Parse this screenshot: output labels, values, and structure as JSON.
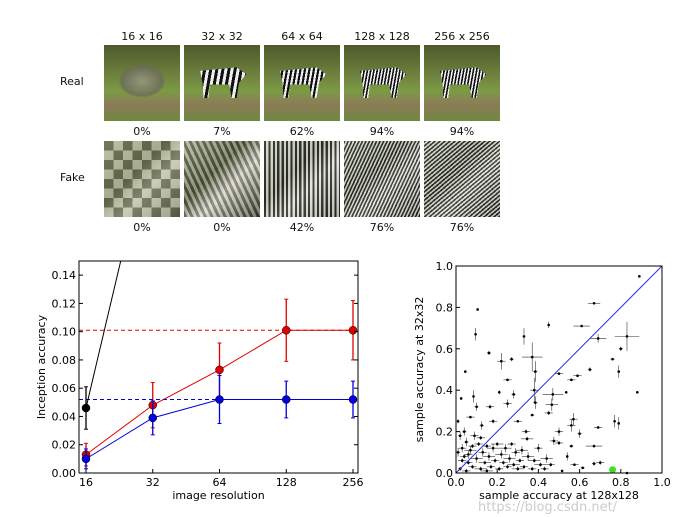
{
  "grid": {
    "resolutions": [
      "16 x 16",
      "32 x 32",
      "64 x 64",
      "128 x 128",
      "256 x 256"
    ],
    "rows": [
      {
        "label": "Real",
        "percentages": [
          "0%",
          "7%",
          "62%",
          "94%",
          "94%"
        ]
      },
      {
        "label": "Fake",
        "percentages": [
          "0%",
          "0%",
          "42%",
          "76%",
          "76%"
        ]
      }
    ]
  },
  "watermark": "https://blog.csdn.net/",
  "chart_data": [
    {
      "type": "line",
      "xlabel": "image resolution",
      "ylabel": "Inception accuracy",
      "x": [
        16,
        32,
        64,
        128,
        256
      ],
      "xscale": "log2",
      "xticks": [
        "16",
        "32",
        "64",
        "128",
        "256"
      ],
      "ylim": [
        0,
        0.15
      ],
      "yticks": [
        "0.00",
        "0.02",
        "0.04",
        "0.06",
        "0.08",
        "0.10",
        "0.12",
        "0.14"
      ],
      "grid": false,
      "series": [
        {
          "color": "#e00000",
          "values": [
            0.013,
            0.048,
            0.073,
            0.101,
            0.101
          ],
          "errors": [
            0.008,
            0.016,
            0.019,
            0.022,
            0.021
          ],
          "hline": 0.101
        },
        {
          "color": "#0000e0",
          "values": [
            0.01,
            0.039,
            0.052,
            0.052,
            0.052
          ],
          "errors": [
            0.007,
            0.012,
            0.017,
            0.013,
            0.013
          ],
          "hline": 0.052
        },
        {
          "color": "#000000",
          "x": [
            16,
            32
          ],
          "values": [
            0.046,
            0.246
          ],
          "errors": [
            0.015,
            null
          ]
        }
      ]
    },
    {
      "type": "scatter",
      "xlabel": "sample accuracy at 128x128",
      "ylabel": "sample accuracy at 32x32",
      "xlim": [
        0,
        1
      ],
      "ylim": [
        0,
        1
      ],
      "xticks": [
        "0.0",
        "0.2",
        "0.4",
        "0.6",
        "0.8",
        "1.0"
      ],
      "yticks": [
        "0.0",
        "0.2",
        "0.4",
        "0.6",
        "0.8",
        "1.0"
      ],
      "diagonal_color": "#3030e0",
      "highlight": {
        "x": 0.76,
        "y": 0.016,
        "color": "#44dd22"
      },
      "points": [
        [
          0.89,
          0.95,
          0,
          0
        ],
        [
          0.105,
          0.79,
          0,
          0
        ],
        [
          0.095,
          0.67,
          0,
          0.03
        ],
        [
          0.45,
          0.715,
          0,
          0.015
        ],
        [
          0.33,
          0.66,
          0,
          0.04
        ],
        [
          0.67,
          0.82,
          0.03,
          0
        ],
        [
          0.61,
          0.71,
          0.04,
          0
        ],
        [
          0.69,
          0.65,
          0.04,
          0.02
        ],
        [
          0.83,
          0.66,
          0.06,
          0.07
        ],
        [
          0.8,
          0.6,
          0.01,
          0.01
        ],
        [
          0.16,
          0.58,
          0.01,
          0.01
        ],
        [
          0.22,
          0.54,
          0.02,
          0.04
        ],
        [
          0.27,
          0.55,
          0.01,
          0.01
        ],
        [
          0.37,
          0.56,
          0.05,
          0.07
        ],
        [
          0.385,
          0.49,
          0.01,
          0.05
        ],
        [
          0.76,
          0.55,
          0.01,
          0
        ],
        [
          0.79,
          0.49,
          0,
          0.03
        ],
        [
          0.65,
          0.5,
          0.01,
          0.01
        ],
        [
          0.045,
          0.49,
          0,
          0
        ],
        [
          0.5,
          0.48,
          0.02,
          0
        ],
        [
          0.59,
          0.47,
          0.02,
          0
        ],
        [
          0.25,
          0.45,
          0.02,
          0
        ],
        [
          0.56,
          0.45,
          0.02,
          0
        ],
        [
          0.88,
          0.39,
          0,
          0
        ],
        [
          0.025,
          0.36,
          0,
          0
        ],
        [
          0.085,
          0.37,
          0,
          0.03
        ],
        [
          0.38,
          0.4,
          0.02,
          0.06
        ],
        [
          0.385,
          0.34,
          0.01,
          0.03
        ],
        [
          0.21,
          0.39,
          0,
          0.01
        ],
        [
          0.47,
          0.38,
          0.05,
          0.03
        ],
        [
          0.465,
          0.33,
          0.03,
          0.03
        ],
        [
          0.165,
          0.32,
          0.02,
          0.01
        ],
        [
          0.1,
          0.32,
          0.01,
          0.02
        ],
        [
          0.535,
          0.39,
          0,
          0
        ],
        [
          0.28,
          0.38,
          0.01,
          0.02
        ],
        [
          0.25,
          0.335,
          0.02,
          0.02
        ],
        [
          0.37,
          0.28,
          0.01,
          0
        ],
        [
          0.45,
          0.29,
          0.02,
          0.01
        ],
        [
          0.07,
          0.27,
          0.02,
          0
        ],
        [
          0.125,
          0.23,
          0.01,
          0.02
        ],
        [
          0.18,
          0.25,
          0.02,
          0.01
        ],
        [
          0.3,
          0.25,
          0.02,
          0
        ],
        [
          0.57,
          0.26,
          0.02,
          0.03
        ],
        [
          0.56,
          0.23,
          0.02,
          0.03
        ],
        [
          0.5,
          0.2,
          0.02,
          0.02
        ],
        [
          0.6,
          0.19,
          0.01,
          0.02
        ],
        [
          0.69,
          0.22,
          0.02,
          0
        ],
        [
          0.77,
          0.25,
          0,
          0.03
        ],
        [
          0.79,
          0.24,
          0,
          0.03
        ],
        [
          0.34,
          0.2,
          0.02,
          0.01
        ],
        [
          0.345,
          0.165,
          0.03,
          0.01
        ],
        [
          0.475,
          0.155,
          0.02,
          0.02
        ],
        [
          0.5,
          0.145,
          0.02,
          0.01
        ],
        [
          0.67,
          0.13,
          0.04,
          0
        ],
        [
          0.56,
          0.13,
          0.01,
          0
        ],
        [
          0.54,
          0.08,
          0,
          0.02
        ],
        [
          0.67,
          0.045,
          0.01,
          0.01
        ],
        [
          0.7,
          0.05,
          0.02,
          0.01
        ],
        [
          0.575,
          0.04,
          0.02,
          0
        ],
        [
          0.615,
          0.025,
          0.01,
          0
        ],
        [
          0.515,
          0.01,
          0,
          0
        ],
        [
          0.83,
          0.0,
          0,
          0
        ],
        [
          0.01,
          0.25,
          0,
          0.01
        ],
        [
          0.02,
          0.18,
          0.01,
          0.02
        ],
        [
          0.03,
          0.12,
          0.02,
          0.02
        ],
        [
          0.04,
          0.08,
          0.02,
          0.01
        ],
        [
          0.05,
          0.15,
          0.01,
          0.02
        ],
        [
          0.06,
          0.05,
          0.02,
          0.01
        ],
        [
          0.07,
          0.11,
          0.03,
          0.02
        ],
        [
          0.08,
          0.03,
          0.02,
          0.01
        ],
        [
          0.09,
          0.18,
          0.02,
          0.02
        ],
        [
          0.1,
          0.07,
          0.03,
          0.02
        ],
        [
          0.11,
          0.14,
          0.02,
          0.01
        ],
        [
          0.12,
          0.02,
          0.03,
          0.01
        ],
        [
          0.13,
          0.1,
          0.02,
          0.02
        ],
        [
          0.14,
          0.05,
          0.03,
          0.01
        ],
        [
          0.15,
          0.13,
          0.02,
          0.01
        ],
        [
          0.16,
          0.08,
          0.03,
          0.02
        ],
        [
          0.17,
          0.03,
          0.02,
          0.01
        ],
        [
          0.18,
          0.12,
          0.03,
          0.02
        ],
        [
          0.19,
          0.06,
          0.02,
          0.01
        ],
        [
          0.2,
          0.14,
          0.03,
          0.01
        ],
        [
          0.21,
          0.02,
          0.02,
          0.01
        ],
        [
          0.22,
          0.09,
          0.03,
          0.02
        ],
        [
          0.23,
          0.05,
          0.02,
          0.01
        ],
        [
          0.24,
          0.12,
          0.03,
          0.02
        ],
        [
          0.25,
          0.03,
          0.02,
          0.01
        ],
        [
          0.26,
          0.07,
          0.03,
          0.02
        ],
        [
          0.27,
          0.14,
          0.02,
          0.01
        ],
        [
          0.28,
          0.04,
          0.03,
          0.01
        ],
        [
          0.29,
          0.1,
          0.02,
          0.02
        ],
        [
          0.3,
          0.02,
          0.03,
          0.01
        ],
        [
          0.31,
          0.06,
          0.02,
          0.01
        ],
        [
          0.32,
          0.11,
          0.03,
          0.02
        ],
        [
          0.33,
          0.03,
          0.02,
          0.01
        ],
        [
          0.35,
          0.08,
          0.03,
          0.02
        ],
        [
          0.37,
          0.02,
          0.02,
          0.01
        ],
        [
          0.38,
          0.06,
          0.03,
          0.01
        ],
        [
          0.4,
          0.12,
          0.02,
          0.02
        ],
        [
          0.41,
          0.04,
          0.03,
          0.01
        ],
        [
          0.43,
          0.02,
          0.02,
          0.01
        ],
        [
          0.44,
          0.07,
          0.03,
          0.02
        ],
        [
          0.46,
          0.04,
          0.02,
          0.01
        ],
        [
          0.02,
          0.02,
          0.01,
          0.01
        ],
        [
          0.03,
          0.06,
          0.02,
          0.01
        ],
        [
          0.05,
          0.01,
          0.02,
          0.01
        ],
        [
          0.01,
          0.1,
          0.01,
          0.02
        ],
        [
          0.04,
          0.2,
          0.01,
          0.02
        ],
        [
          0.08,
          0.13,
          0.02,
          0.01
        ],
        [
          0.06,
          0.09,
          0.02,
          0.02
        ],
        [
          0.12,
          0.17,
          0.02,
          0.01
        ],
        [
          0.15,
          0.01,
          0.03,
          0.01
        ]
      ]
    }
  ]
}
